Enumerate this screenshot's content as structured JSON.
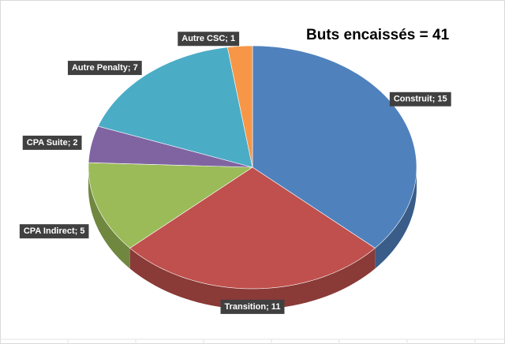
{
  "chart_data": {
    "type": "pie",
    "title": "Buts encaissés = 41",
    "categories": [
      "Construit",
      "Transition",
      "CPA Indirect",
      "CPA Suite",
      "Autre Penalty",
      "Autre CSC"
    ],
    "values": [
      15,
      11,
      5,
      2,
      7,
      1
    ],
    "value_labels": [
      "Construit; 15",
      "Transition; 11",
      "CPA Indirect; 5",
      "CPA Suite; 2",
      "Autre Penalty; 7",
      "Autre CSC; 1"
    ],
    "colors": [
      "#4f81bd",
      "#c0504d",
      "#9bbb59",
      "#8064a2",
      "#4bacc6",
      "#f79646"
    ]
  }
}
